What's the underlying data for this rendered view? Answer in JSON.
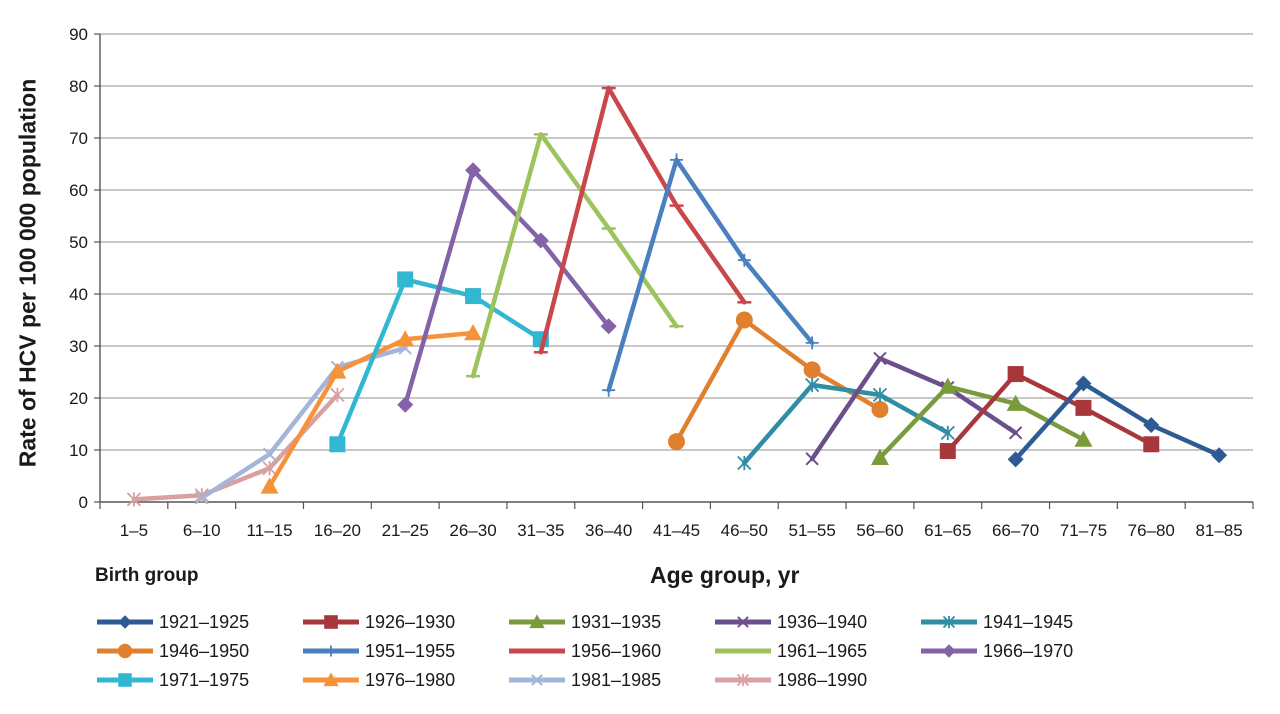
{
  "chart_data": {
    "type": "line",
    "xlabel": "Age group, yr",
    "ylabel": "Rate of HCV per 100 000 population",
    "ylim": [
      0,
      90
    ],
    "yticks": [
      0,
      10,
      20,
      30,
      40,
      50,
      60,
      70,
      80,
      90
    ],
    "grid": true,
    "legend_title": "Birth group",
    "legend_position": "bottom",
    "categories": [
      "1–5",
      "6–10",
      "11–15",
      "16–20",
      "21–25",
      "26–30",
      "31–35",
      "36–40",
      "41–45",
      "46–50",
      "51–55",
      "56–60",
      "61–65",
      "66–70",
      "71–75",
      "76–80",
      "81–85"
    ],
    "series": [
      {
        "name": "1921–1925",
        "color": "#2e5b94",
        "marker": "diamond",
        "points": [
          [
            "66–70",
            8.2
          ],
          [
            "71–75",
            22.8
          ],
          [
            "76–80",
            14.8
          ],
          [
            "81–85",
            9.0
          ]
        ]
      },
      {
        "name": "1926–1930",
        "color": "#a7373b",
        "marker": "square",
        "points": [
          [
            "61–65",
            9.8
          ],
          [
            "66–70",
            24.6
          ],
          [
            "71–75",
            18.1
          ],
          [
            "76–80",
            11.1
          ]
        ]
      },
      {
        "name": "1931–1935",
        "color": "#7a9b3c",
        "marker": "triangle",
        "points": [
          [
            "56–60",
            8.5
          ],
          [
            "61–65",
            22.2
          ],
          [
            "66–70",
            18.9
          ],
          [
            "71–75",
            12.0
          ]
        ]
      },
      {
        "name": "1936–1940",
        "color": "#6a4f8c",
        "marker": "x",
        "points": [
          [
            "51–55",
            8.3
          ],
          [
            "56–60",
            27.6
          ],
          [
            "61–65",
            22.0
          ],
          [
            "66–70",
            13.3
          ]
        ]
      },
      {
        "name": "1941–1945",
        "color": "#2f8da4",
        "marker": "star",
        "points": [
          [
            "46–50",
            7.5
          ],
          [
            "51–55",
            22.5
          ],
          [
            "56–60",
            20.6
          ],
          [
            "61–65",
            13.3
          ]
        ]
      },
      {
        "name": "1946–1950",
        "color": "#e0802e",
        "marker": "circle",
        "points": [
          [
            "41–45",
            11.6
          ],
          [
            "46–50",
            35.0
          ],
          [
            "51–55",
            25.4
          ],
          [
            "56–60",
            17.8
          ]
        ]
      },
      {
        "name": "1951–1955",
        "color": "#4a7fc0",
        "marker": "plus",
        "points": [
          [
            "36–40",
            21.5
          ],
          [
            "41–45",
            65.8
          ],
          [
            "46–50",
            46.5
          ],
          [
            "51–55",
            30.6
          ]
        ]
      },
      {
        "name": "1956–1960",
        "color": "#c9474a",
        "marker": "dash",
        "points": [
          [
            "31–35",
            28.8
          ],
          [
            "36–40",
            79.6
          ],
          [
            "41–45",
            57.0
          ],
          [
            "46–50",
            38.4
          ]
        ]
      },
      {
        "name": "1961–1965",
        "color": "#9cc35c",
        "marker": "dash",
        "points": [
          [
            "26–30",
            24.2
          ],
          [
            "31–35",
            70.7
          ],
          [
            "36–40",
            52.6
          ],
          [
            "41–45",
            33.8
          ]
        ]
      },
      {
        "name": "1966–1970",
        "color": "#8462a8",
        "marker": "diamond",
        "points": [
          [
            "21–25",
            18.7
          ],
          [
            "26–30",
            63.8
          ],
          [
            "31–35",
            50.3
          ],
          [
            "36–40",
            33.8
          ]
        ]
      },
      {
        "name": "1971–1975",
        "color": "#32b7d2",
        "marker": "square",
        "points": [
          [
            "16–20",
            11.1
          ],
          [
            "21–25",
            42.8
          ],
          [
            "26–30",
            39.6
          ],
          [
            "31–35",
            31.3
          ]
        ]
      },
      {
        "name": "1976–1980",
        "color": "#f5923a",
        "marker": "triangle",
        "points": [
          [
            "11–15",
            3.0
          ],
          [
            "16–20",
            25.1
          ],
          [
            "21–25",
            31.3
          ],
          [
            "26–30",
            32.5
          ]
        ]
      },
      {
        "name": "1981–1985",
        "color": "#a3b5d8",
        "marker": "x",
        "points": [
          [
            "6–10",
            0.8
          ],
          [
            "11–15",
            9.2
          ],
          [
            "16–20",
            25.9
          ],
          [
            "21–25",
            29.6
          ]
        ]
      },
      {
        "name": "1986–1990",
        "color": "#d8a0a0",
        "marker": "star",
        "points": [
          [
            "1–5",
            0.5
          ],
          [
            "6–10",
            1.3
          ],
          [
            "11–15",
            6.5
          ],
          [
            "16–20",
            20.6
          ]
        ]
      }
    ]
  }
}
